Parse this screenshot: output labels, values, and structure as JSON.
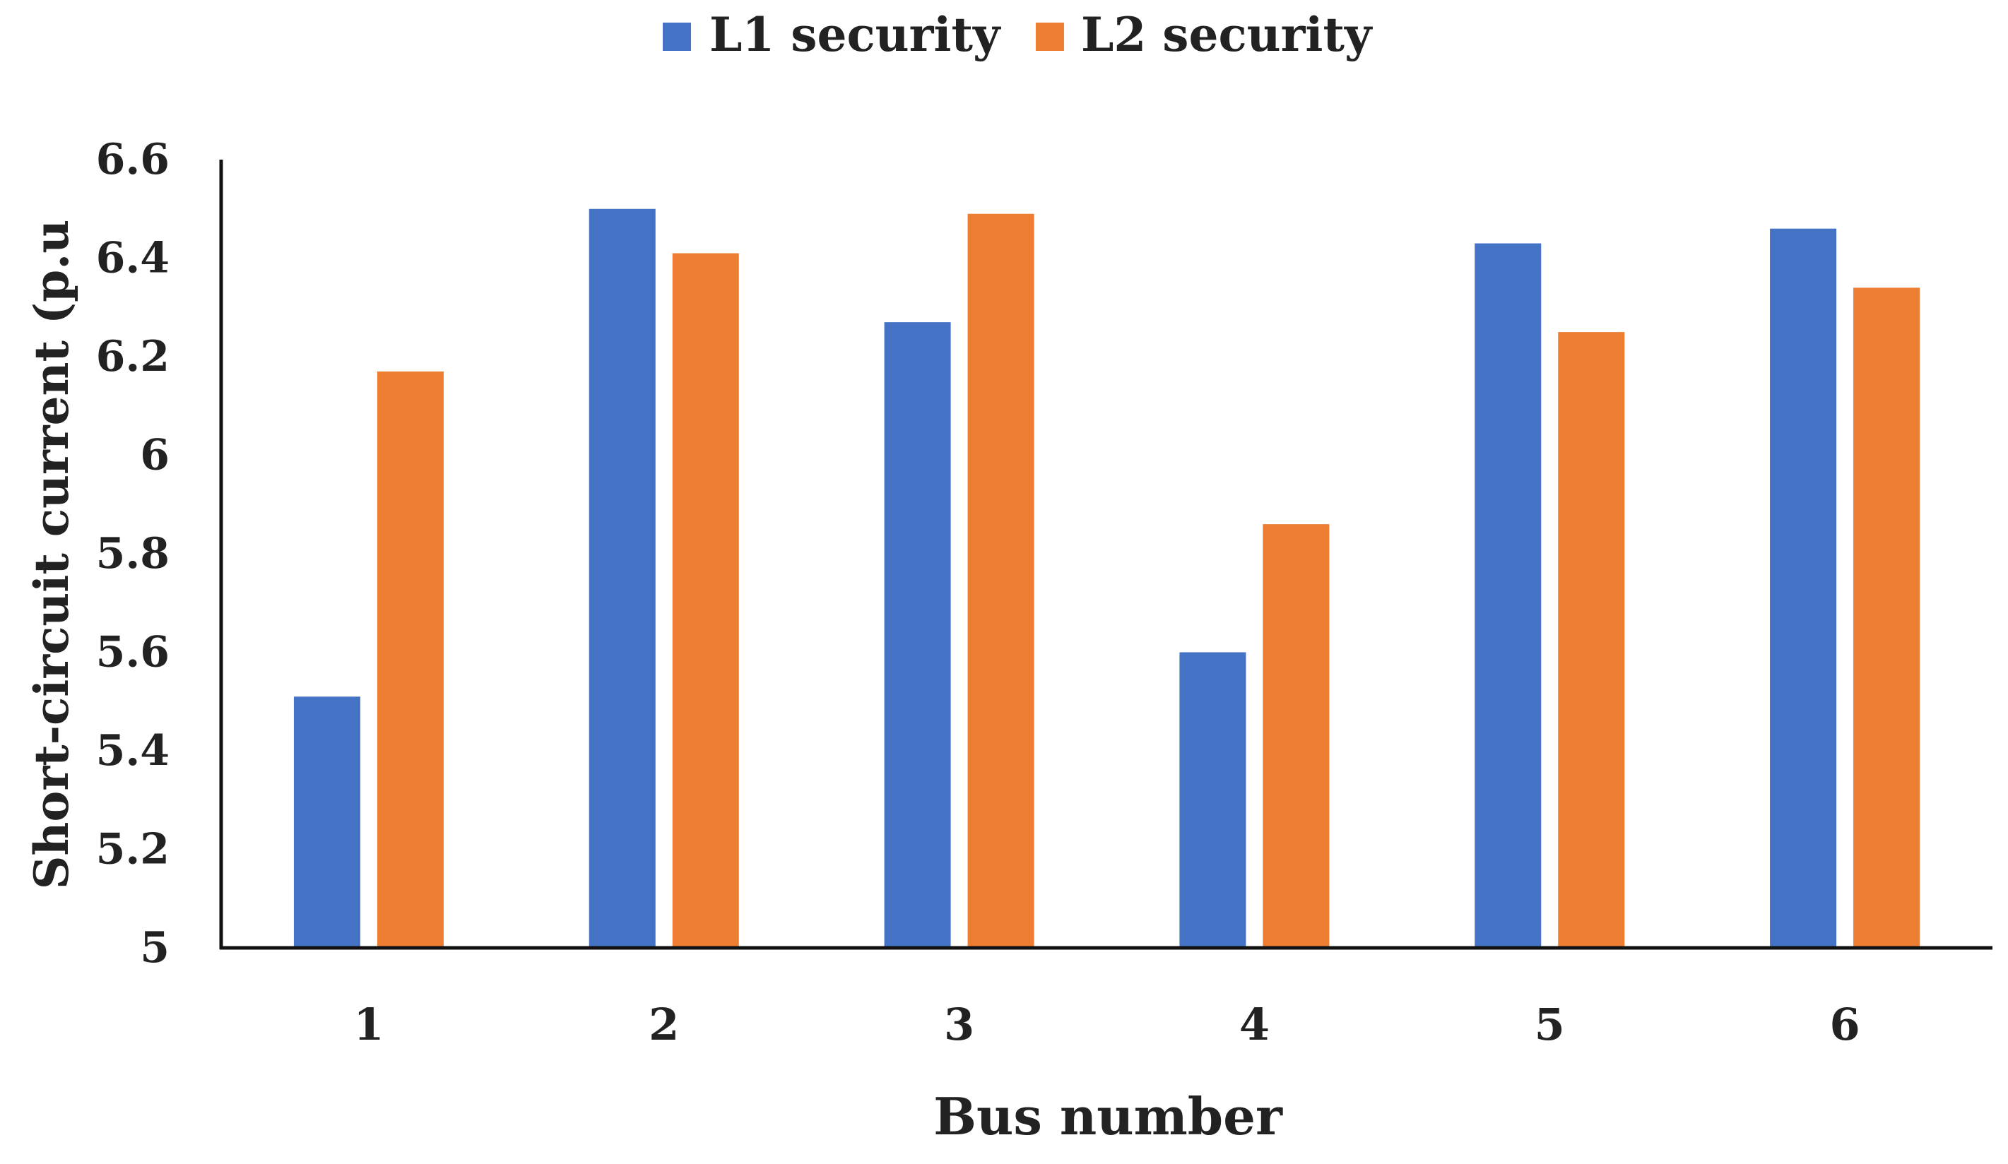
{
  "chart_data": {
    "type": "bar",
    "title": "",
    "xlabel": "Bus number",
    "ylabel": "Short-circuit current (p.u",
    "categories": [
      "1",
      "2",
      "3",
      "4",
      "5",
      "6"
    ],
    "series": [
      {
        "name": "L1 security",
        "color": "#4472C4",
        "values": [
          5.51,
          6.5,
          6.27,
          5.6,
          6.43,
          6.46
        ]
      },
      {
        "name": "L2 security",
        "color": "#ED7D31",
        "values": [
          6.17,
          6.41,
          6.49,
          5.86,
          6.25,
          6.34
        ]
      }
    ],
    "ylim": [
      5,
      6.6
    ],
    "yticks": [
      "5",
      "5.2",
      "5.4",
      "5.6",
      "5.8",
      "6",
      "6.2",
      "6.4",
      "6.6"
    ],
    "grid": false,
    "legend_position": "top-center"
  }
}
